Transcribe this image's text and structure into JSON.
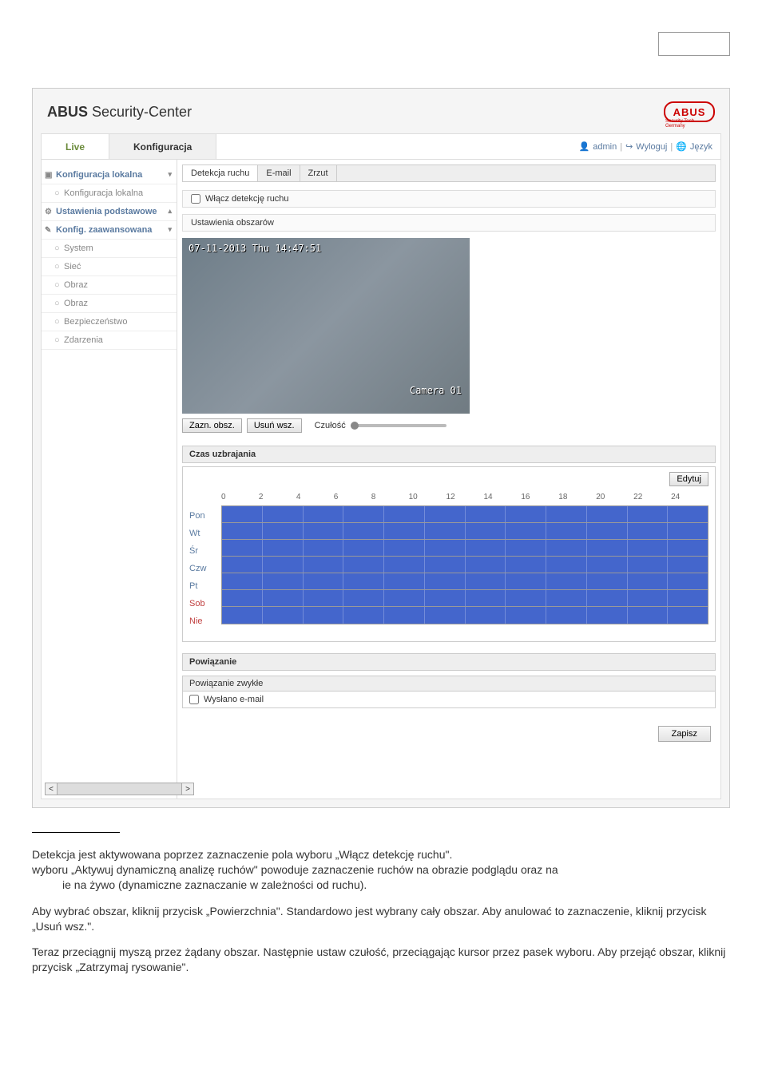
{
  "brand": {
    "bold": "ABUS",
    "thin": " Security-Center",
    "logo_text": "ABUS",
    "logo_sub": "Security Tech Germany"
  },
  "topTabs": {
    "live": "Live",
    "config": "Konfiguracja"
  },
  "userbar": {
    "user": "admin",
    "logout": "Wyloguj",
    "lang": "Język"
  },
  "nav": {
    "localCfg": "Konfiguracja lokalna",
    "localCfgSub": "Konfiguracja lokalna",
    "basicSettings": "Ustawienia podstawowe",
    "advCfg": "Konfig. zaawansowana",
    "system": "System",
    "net": "Sieć",
    "image1": "Obraz",
    "image2": "Obraz",
    "security": "Bezpieczeństwo",
    "events": "Zdarzenia"
  },
  "subtabs": {
    "motion": "Detekcja ruchu",
    "email": "E-mail",
    "snapshot": "Zrzut"
  },
  "enableMotion": "Włącz detekcję ruchu",
  "areaSettings": "Ustawienia obszarów",
  "video": {
    "ts": "07-11-2013 Thu 14:47:51",
    "cam": "Camera 01"
  },
  "videoCtrls": {
    "drawArea": "Zazn. obsz.",
    "clearAll": "Usuń wsz.",
    "sensitivity": "Czułość"
  },
  "arming": "Czas uzbrajania",
  "edit": "Edytuj",
  "hours": [
    "0",
    "2",
    "4",
    "6",
    "8",
    "10",
    "12",
    "14",
    "16",
    "18",
    "20",
    "22",
    "24"
  ],
  "days": [
    {
      "label": "Pon",
      "wk": false
    },
    {
      "label": "Wt",
      "wk": false
    },
    {
      "label": "Śr",
      "wk": false
    },
    {
      "label": "Czw",
      "wk": false
    },
    {
      "label": "Pt",
      "wk": false
    },
    {
      "label": "Sob",
      "wk": true
    },
    {
      "label": "Nie",
      "wk": true
    }
  ],
  "linkage": {
    "header": "Powiązanie",
    "normal": "Powiązanie zwykłe",
    "email": "Wysłano e-mail"
  },
  "save": "Zapisz",
  "scroll": {
    "left": "<",
    "right": ">"
  },
  "prose": {
    "p1a": "Detekcja jest aktywowana poprzez zaznaczenie pola wyboru „Włącz detekcję ruchu\".",
    "p1b": "wyboru „Aktywuj dynamiczną analizę ruchów\" powoduje zaznaczenie ruchów na obrazie podglądu oraz na",
    "p1c": "ie na żywo (dynamiczne zaznaczanie w zależności od ruchu).",
    "p2": "Aby wybrać obszar, kliknij przycisk „Powierzchnia\". Standardowo jest wybrany cały obszar. Aby anulować to zaznaczenie, kliknij przycisk „Usuń wsz.\".",
    "p3": "Teraz przeciągnij myszą przez żądany obszar. Następnie ustaw czułość, przeciągając kursor przez pasek wyboru. Aby przejąć obszar, kliknij przycisk „Zatrzymaj rysowanie\"."
  },
  "colors": {
    "schedule_fill": "#4466cc",
    "accent_green": "#6a8a3a",
    "link_blue": "#5a7aa0",
    "weekend_red": "#c04040"
  }
}
